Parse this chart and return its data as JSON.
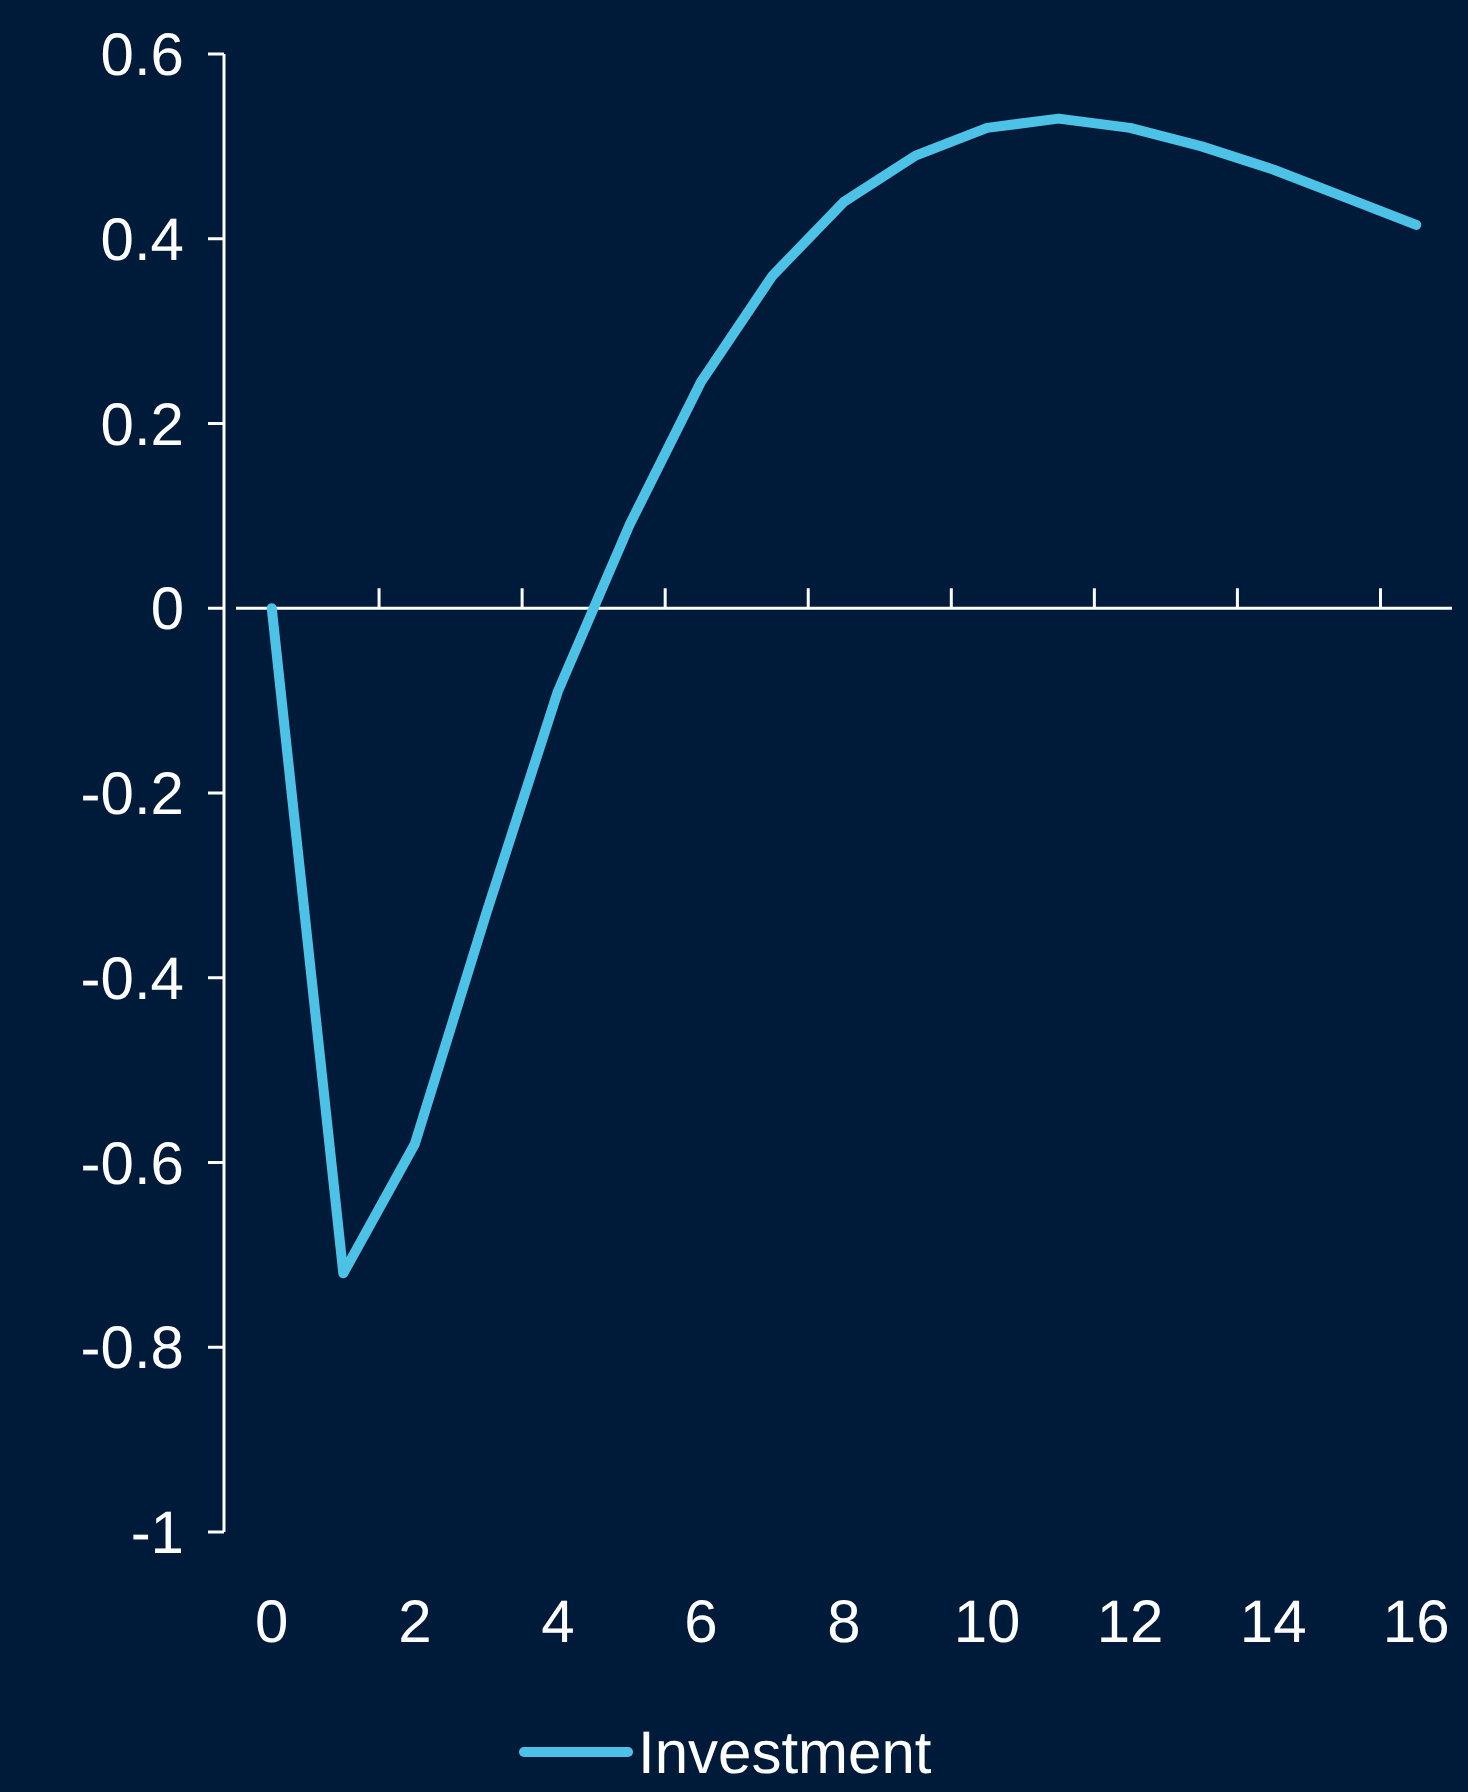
{
  "chart_data": {
    "type": "line",
    "x": [
      0,
      1,
      2,
      3,
      4,
      5,
      6,
      7,
      8,
      9,
      10,
      11,
      12,
      13,
      14,
      15,
      16
    ],
    "series": [
      {
        "name": "Investment",
        "color": "#4cc3e6",
        "values": [
          0,
          -0.72,
          -0.58,
          -0.33,
          -0.09,
          0.09,
          0.245,
          0.36,
          0.44,
          0.49,
          0.52,
          0.53,
          0.52,
          0.5,
          0.475,
          0.445,
          0.415
        ]
      }
    ],
    "xlim": [
      -0.5,
      16.5
    ],
    "xticks": [
      0,
      {
        "value": 1.5,
        "label": null
      },
      2,
      {
        "value": 3.5,
        "label": null
      },
      4,
      {
        "value": 5.5,
        "label": null
      },
      6,
      {
        "value": 7.5,
        "label": null
      },
      8,
      {
        "value": 9.5,
        "label": null
      },
      10,
      {
        "value": 11.5,
        "label": null
      },
      12,
      {
        "value": 13.5,
        "label": null
      },
      14,
      {
        "value": 15.5,
        "label": null
      },
      16
    ],
    "ylim": [
      -1,
      0.6
    ],
    "yticks": [
      -1,
      -0.8,
      -0.6,
      -0.4,
      -0.2,
      0,
      0.2,
      0.4,
      0.6
    ],
    "legend": "bottom",
    "marker": "none",
    "line_style": "solid"
  }
}
